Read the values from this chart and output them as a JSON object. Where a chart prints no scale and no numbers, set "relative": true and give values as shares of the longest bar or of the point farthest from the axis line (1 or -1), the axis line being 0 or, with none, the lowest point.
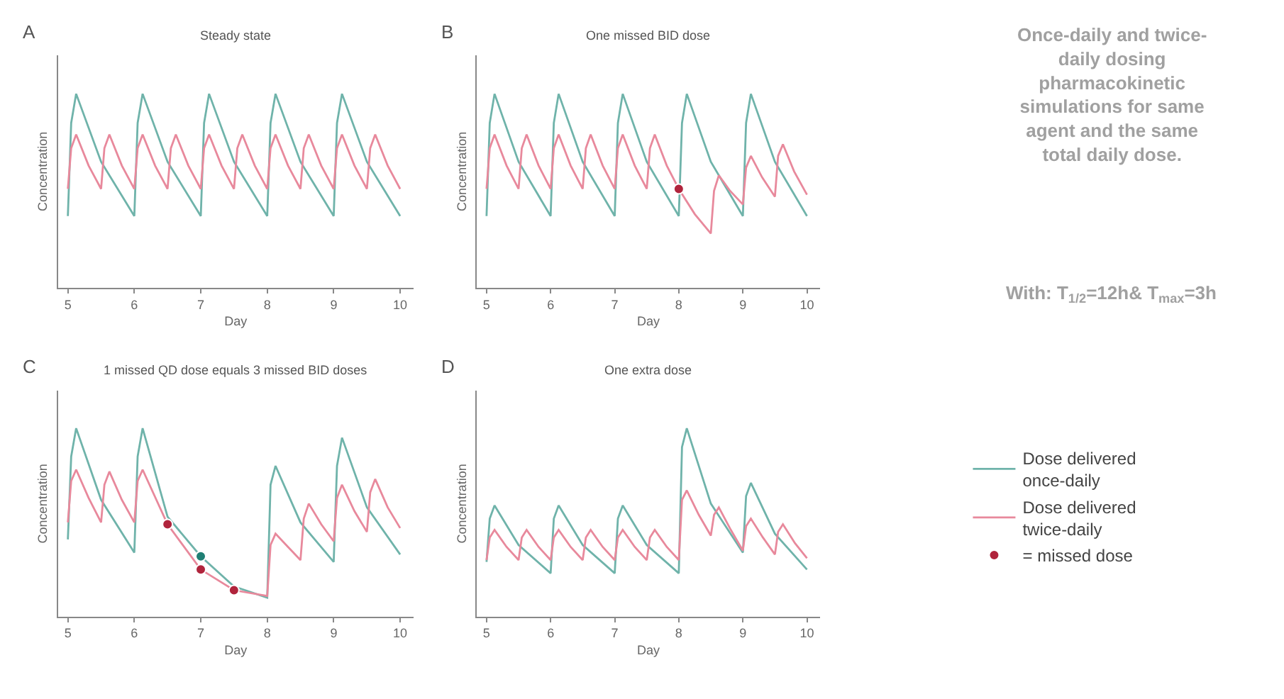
{
  "chart_data": [
    {
      "type": "line",
      "title": "Steady state",
      "annotations": [
        "A"
      ],
      "xlabel": "Day",
      "ylabel": "Concentration",
      "relative": true,
      "xlim": [
        4.85,
        10.2
      ],
      "xticks": [
        5,
        6,
        7,
        8,
        9,
        10
      ],
      "marker": "none",
      "line_style": "solid",
      "series": [
        {
          "color": "#6fb3aa",
          "x": [
            5,
            5.05,
            5.125,
            5.5,
            6,
            6.05,
            6.125,
            6.5,
            7,
            7.05,
            7.125,
            7.5,
            8,
            8.05,
            8.125,
            8.5,
            9,
            9.05,
            9.125,
            9.5,
            10
          ],
          "values": [
            0.37,
            0.85,
            1.0,
            0.65,
            0.37,
            0.85,
            1.0,
            0.65,
            0.37,
            0.85,
            1.0,
            0.65,
            0.37,
            0.85,
            1.0,
            0.65,
            0.37,
            0.85,
            1.0,
            0.65,
            0.37
          ]
        },
        {
          "color": "#e8899c",
          "x": [
            5,
            5.05,
            5.125,
            5.3125,
            5.5,
            5.55,
            5.625,
            5.8125,
            6,
            6.05,
            6.125,
            6.3125,
            6.5,
            6.55,
            6.625,
            6.8125,
            7,
            7.05,
            7.125,
            7.3125,
            7.5,
            7.55,
            7.625,
            7.8125,
            8,
            8.05,
            8.125,
            8.3125,
            8.5,
            8.55,
            8.625,
            8.8125,
            9,
            9.05,
            9.125,
            9.3125,
            9.5,
            9.55,
            9.625,
            9.8125,
            10
          ],
          "values": [
            0.51,
            0.72,
            0.79,
            0.63,
            0.51,
            0.72,
            0.79,
            0.63,
            0.51,
            0.72,
            0.79,
            0.63,
            0.51,
            0.72,
            0.79,
            0.63,
            0.51,
            0.72,
            0.79,
            0.63,
            0.51,
            0.72,
            0.79,
            0.63,
            0.51,
            0.72,
            0.79,
            0.63,
            0.51,
            0.72,
            0.79,
            0.63,
            0.51,
            0.72,
            0.79,
            0.63,
            0.51,
            0.72,
            0.79,
            0.63,
            0.51
          ]
        }
      ]
    },
    {
      "type": "line",
      "title": "One missed BID dose",
      "annotations": [
        "B"
      ],
      "xlabel": "Day",
      "ylabel": "Concentration",
      "relative": true,
      "xlim": [
        4.85,
        10.2
      ],
      "xticks": [
        5,
        6,
        7,
        8,
        9,
        10
      ],
      "marker": "none",
      "line_style": "solid",
      "series": [
        {
          "color": "#6fb3aa",
          "x": [
            5,
            5.05,
            5.125,
            5.5,
            6,
            6.05,
            6.125,
            6.5,
            7,
            7.05,
            7.125,
            7.5,
            8,
            8.05,
            8.125,
            8.5,
            9,
            9.05,
            9.125,
            9.5,
            10
          ],
          "values": [
            0.37,
            0.85,
            1.0,
            0.65,
            0.37,
            0.85,
            1.0,
            0.65,
            0.37,
            0.85,
            1.0,
            0.65,
            0.37,
            0.85,
            1.0,
            0.65,
            0.37,
            0.85,
            1.0,
            0.65,
            0.37
          ]
        },
        {
          "color": "#e8899c",
          "x": [
            5,
            5.05,
            5.125,
            5.3125,
            5.5,
            5.55,
            5.625,
            5.8125,
            6,
            6.05,
            6.125,
            6.3125,
            6.5,
            6.55,
            6.625,
            6.8125,
            7,
            7.05,
            7.125,
            7.3125,
            7.5,
            7.55,
            7.625,
            7.8125,
            8,
            8.25,
            8.5,
            8.55,
            8.625,
            8.8,
            9,
            9.05,
            9.125,
            9.3,
            9.5,
            9.55,
            9.625,
            9.8,
            10
          ],
          "values": [
            0.51,
            0.72,
            0.79,
            0.63,
            0.51,
            0.72,
            0.79,
            0.63,
            0.51,
            0.72,
            0.79,
            0.63,
            0.51,
            0.72,
            0.79,
            0.63,
            0.51,
            0.72,
            0.79,
            0.63,
            0.51,
            0.72,
            0.79,
            0.63,
            0.51,
            0.38,
            0.28,
            0.5,
            0.58,
            0.5,
            0.43,
            0.62,
            0.68,
            0.57,
            0.47,
            0.68,
            0.74,
            0.6,
            0.48
          ]
        },
        {
          "type": "scatter",
          "marker": "circle",
          "x": [
            8
          ],
          "values": [
            0.51
          ],
          "colors": [
            "#b0243c"
          ]
        }
      ]
    },
    {
      "type": "line",
      "title": "1 missed QD dose equals 3 missed BID doses",
      "annotations": [
        "C"
      ],
      "xlabel": "Day",
      "ylabel": "Concentration",
      "relative": true,
      "xlim": [
        4.85,
        10.2
      ],
      "xticks": [
        5,
        6,
        7,
        8,
        9,
        10
      ],
      "marker": "none",
      "line_style": "solid",
      "legend": "right",
      "series": [
        {
          "name": "Dose delivered once-daily",
          "color": "#6fb3aa",
          "x": [
            5,
            5.05,
            5.125,
            5.5,
            6,
            6.05,
            6.125,
            6.5,
            7,
            7.5,
            8,
            8.05,
            8.125,
            8.5,
            9,
            9.05,
            9.125,
            9.5,
            10
          ],
          "values": [
            0.41,
            0.85,
            1.0,
            0.62,
            0.34,
            0.85,
            1.0,
            0.53,
            0.32,
            0.16,
            0.1,
            0.7,
            0.8,
            0.5,
            0.29,
            0.8,
            0.95,
            0.58,
            0.33
          ]
        },
        {
          "name": "Dose delivered twice-daily",
          "color": "#e8899c",
          "x": [
            5,
            5.05,
            5.125,
            5.3125,
            5.5,
            5.55,
            5.625,
            5.8125,
            6,
            6.05,
            6.125,
            6.5,
            7,
            7.5,
            8,
            8.05,
            8.125,
            8.3125,
            8.5,
            8.55,
            8.625,
            8.8125,
            9,
            9.05,
            9.125,
            9.3125,
            9.5,
            9.55,
            9.625,
            9.8125,
            10
          ],
          "values": [
            0.5,
            0.72,
            0.78,
            0.63,
            0.5,
            0.7,
            0.77,
            0.62,
            0.5,
            0.72,
            0.78,
            0.49,
            0.25,
            0.14,
            0.11,
            0.38,
            0.44,
            0.37,
            0.3,
            0.52,
            0.6,
            0.49,
            0.4,
            0.63,
            0.7,
            0.56,
            0.45,
            0.66,
            0.73,
            0.58,
            0.47
          ]
        },
        {
          "name": "= missed dose",
          "type": "scatter",
          "marker": "circle",
          "color": "#9aa3ab",
          "x": [
            6.5,
            7,
            7,
            7.5
          ],
          "values": [
            0.49,
            0.32,
            0.25,
            0.14
          ],
          "colors": [
            "#b0243c",
            "#1f7f74",
            "#b0243c",
            "#b0243c"
          ]
        }
      ]
    },
    {
      "type": "line",
      "title": "One extra dose",
      "annotations": [
        "D"
      ],
      "xlabel": "Day",
      "ylabel": "Concentration",
      "relative": true,
      "xlim": [
        4.85,
        10.2
      ],
      "xticks": [
        5,
        6,
        7,
        8,
        9,
        10
      ],
      "marker": "none",
      "line_style": "solid",
      "series": [
        {
          "color": "#6fb3aa",
          "x": [
            5,
            5.05,
            5.125,
            5.5,
            6,
            6.05,
            6.125,
            6.5,
            7,
            7.05,
            7.125,
            7.5,
            8,
            8.05,
            8.125,
            8.5,
            9,
            9.05,
            9.125,
            9.5,
            10
          ],
          "values": [
            0.29,
            0.52,
            0.59,
            0.38,
            0.23,
            0.52,
            0.59,
            0.38,
            0.23,
            0.52,
            0.59,
            0.38,
            0.23,
            0.9,
            1.0,
            0.6,
            0.34,
            0.64,
            0.71,
            0.44,
            0.25
          ]
        },
        {
          "color": "#e8899c",
          "x": [
            5,
            5.05,
            5.125,
            5.3125,
            5.5,
            5.55,
            5.625,
            5.8125,
            6,
            6.05,
            6.125,
            6.3125,
            6.5,
            6.55,
            6.625,
            6.8125,
            7,
            7.05,
            7.125,
            7.3125,
            7.5,
            7.55,
            7.625,
            7.8125,
            8,
            8.05,
            8.125,
            8.3125,
            8.5,
            8.55,
            8.625,
            8.8125,
            9,
            9.05,
            9.125,
            9.3125,
            9.5,
            9.55,
            9.625,
            9.8125,
            10
          ],
          "values": [
            0.3,
            0.42,
            0.46,
            0.37,
            0.3,
            0.42,
            0.46,
            0.37,
            0.3,
            0.42,
            0.46,
            0.37,
            0.3,
            0.42,
            0.46,
            0.37,
            0.3,
            0.42,
            0.46,
            0.37,
            0.3,
            0.42,
            0.46,
            0.37,
            0.3,
            0.62,
            0.67,
            0.54,
            0.43,
            0.54,
            0.58,
            0.46,
            0.35,
            0.48,
            0.52,
            0.42,
            0.33,
            0.45,
            0.49,
            0.39,
            0.31
          ]
        }
      ]
    },
    {
      "type": "other",
      "title": "Once-daily and twice-daily dosing pharmacokinetic simulations for same agent and the same total daily dose.",
      "annotations": [
        "With: T$_{1/2}$=12h& T$_{max}$=3h"
      ]
    }
  ]
}
